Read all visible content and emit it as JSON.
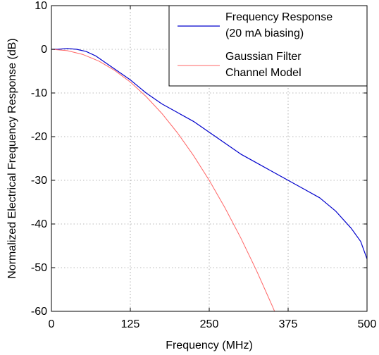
{
  "chart_data": {
    "type": "line",
    "title": "",
    "xlabel": "Frequency (MHz)",
    "ylabel": "Normalized Electrical Frequency Response (dB)",
    "xlim": [
      0,
      500
    ],
    "ylim": [
      -60,
      10
    ],
    "xticks": [
      0,
      125,
      250,
      375,
      500
    ],
    "yticks": [
      10,
      0,
      -10,
      -20,
      -30,
      -40,
      -50,
      -60
    ],
    "grid": true,
    "legend": {
      "placement": "top-right",
      "entries": [
        {
          "line1": "Frequency Response",
          "line2": "(20 mA biasing)"
        },
        {
          "line1": "Gaussian Filter",
          "line2": "Channel Model"
        }
      ]
    },
    "series": [
      {
        "color": "#0000cc",
        "x": [
          0,
          10,
          25,
          40,
          55,
          70,
          85,
          100,
          125,
          150,
          175,
          200,
          225,
          250,
          275,
          300,
          325,
          350,
          375,
          400,
          425,
          450,
          475,
          490,
          500
        ],
        "y": [
          0,
          0,
          0.2,
          0,
          -0.5,
          -1.5,
          -3,
          -4.5,
          -7,
          -10,
          -12.5,
          -14.5,
          -16.5,
          -19,
          -21.5,
          -24,
          -26,
          -28,
          -30,
          -32,
          -34,
          -37,
          -41,
          -44,
          -48
        ]
      },
      {
        "color": "#ff6666",
        "x": [
          0,
          25,
          50,
          75,
          100,
          125,
          150,
          175,
          200,
          225,
          250,
          275,
          300,
          325,
          350,
          360
        ],
        "y": [
          0,
          -0.3,
          -1.2,
          -2.7,
          -4.8,
          -7.5,
          -10.8,
          -14.7,
          -19.2,
          -24.3,
          -30,
          -36.3,
          -43.2,
          -50.7,
          -58.8,
          -62.2
        ]
      }
    ]
  }
}
